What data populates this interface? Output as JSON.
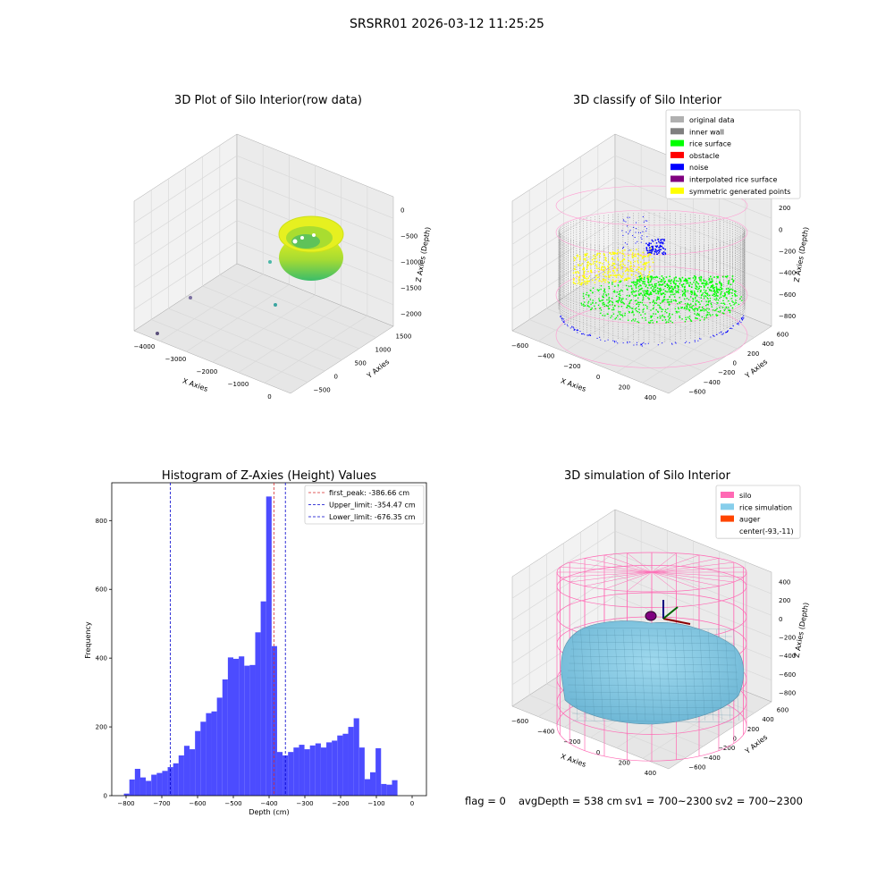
{
  "suptitle": "SRSRR01 2026-03-12 11:25:25",
  "status_line": {
    "flag": "flag = 0",
    "avg_depth": "avgDepth = 538 cm",
    "sv1": "sv1 = 700~2300",
    "sv2": "sv2 = 700~2300"
  },
  "colors": {
    "hist_bar": "#4c4cff",
    "first_peak": "#d62728",
    "limit_lines": "#0000cc",
    "original_data": "#b0b0b0",
    "inner_wall": "#808080",
    "rice_surface": "#00ff00",
    "obstacle": "#ff0000",
    "noise": "#0000ff",
    "interpolated": "#800080",
    "symmetric": "#ffff00",
    "silo": "#ff69b4",
    "rice_sim": "#87ceeb",
    "auger": "#ff4500"
  },
  "chart_data": [
    {
      "type": "scatter",
      "title": "3D Plot of Silo Interior(row data)",
      "xlabel": "X Axies",
      "ylabel": "Y Axies",
      "zlabel": "Z Axies (Depth)",
      "x_ticks": [
        "−4000",
        "−3000",
        "−2000",
        "−1000",
        "0"
      ],
      "y_ticks": [
        "−500",
        "0",
        "500",
        "1000",
        "1500"
      ],
      "z_ticks": [
        "0",
        "−500",
        "−1000",
        "−1500",
        "−2000"
      ]
    },
    {
      "type": "scatter",
      "title": "3D classify of Silo Interior",
      "xlabel": "X Axies",
      "ylabel": "Y Axies",
      "zlabel": "Z Axies (Depth)",
      "x_ticks": [
        "−600",
        "−400",
        "−200",
        "0",
        "200",
        "400"
      ],
      "y_ticks": [
        "−600",
        "−400",
        "−200",
        "0",
        "200",
        "400",
        "600"
      ],
      "z_ticks": [
        "200",
        "0",
        "−200",
        "−400",
        "−600",
        "−800"
      ],
      "legend": [
        "original data",
        "inner wall",
        "rice surface",
        "obstacle",
        "noise",
        "interpolated rice surface",
        "symmetric generated points"
      ],
      "legend_placement": "top-right"
    },
    {
      "type": "bar",
      "title": "Histogram of Z-Axies (Height) Values",
      "xlabel": "Depth (cm)",
      "ylabel": "Frequency",
      "xlim": [
        -840,
        40
      ],
      "ylim": [
        0,
        910
      ],
      "x_ticks": [
        -800,
        -700,
        -600,
        -500,
        -400,
        -300,
        -200,
        -100,
        0
      ],
      "y_ticks": [
        0,
        200,
        400,
        600,
        800
      ],
      "bin_width": 15.3,
      "bin_start": -806,
      "values": [
        6,
        47,
        78,
        53,
        43,
        61,
        66,
        72,
        83,
        94,
        117,
        145,
        135,
        188,
        215,
        240,
        245,
        285,
        338,
        402,
        398,
        405,
        378,
        380,
        475,
        565,
        870,
        435,
        127,
        117,
        127,
        140,
        148,
        135,
        146,
        152,
        140,
        155,
        160,
        175,
        180,
        200,
        225,
        140,
        48,
        68,
        138,
        34,
        32,
        45
      ],
      "lines": [
        {
          "label": "first_peak: -386.66 cm",
          "x": -386.66,
          "style": "first_peak"
        },
        {
          "label": "Upper_limit: -354.47 cm",
          "x": -354.47,
          "style": "limit"
        },
        {
          "label": "Lower_limit: -676.35 cm",
          "x": -676.35,
          "style": "limit"
        }
      ],
      "legend_placement": "top-right"
    },
    {
      "type": "scatter",
      "title": "3D simulation of Silo Interior",
      "xlabel": "X Axies",
      "ylabel": "Y Axies",
      "zlabel": "Z Axies (Depth)",
      "x_ticks": [
        "−600",
        "−400",
        "−200",
        "0",
        "200",
        "400"
      ],
      "y_ticks": [
        "−600",
        "−400",
        "−200",
        "0",
        "200",
        "400",
        "600"
      ],
      "z_ticks": [
        "400",
        "200",
        "0",
        "−200",
        "−400",
        "−600",
        "−800"
      ],
      "legend": [
        "silo",
        "rice simulation",
        "auger",
        "center(-93,-11)"
      ],
      "legend_placement": "top-right"
    }
  ]
}
